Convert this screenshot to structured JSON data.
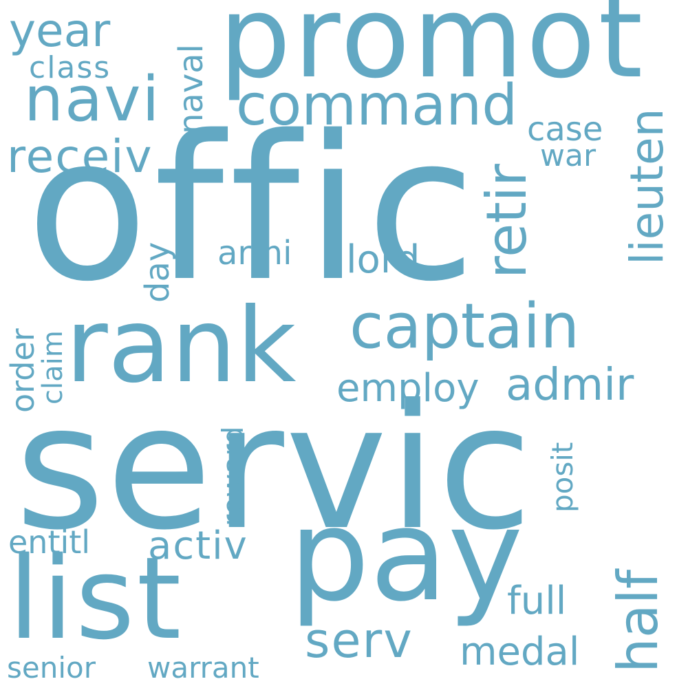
{
  "word_color": "#62a8c3",
  "background_color": "#ffffff",
  "words": {
    "offic": "offic",
    "servic": "servic",
    "promot": "promot",
    "rank": "rank",
    "pay": "pay",
    "list": "list",
    "captain": "captain",
    "navi": "navi",
    "command": "command",
    "receiv": "receiv",
    "year": "year",
    "class": "class",
    "naval": "naval",
    "retir": "retir",
    "lieuten": "lieuten",
    "case": "case",
    "war": "war",
    "armi": "armi",
    "lord": "lord",
    "day": "day",
    "employ": "employ",
    "admir": "admir",
    "order": "order",
    "claim": "claim",
    "reward": "reward",
    "posit": "posit",
    "entitl": "entitl",
    "activ": "activ",
    "half": "half",
    "full": "full",
    "serv": "serv",
    "medal": "medal",
    "senior": "senior",
    "warrant": "warrant"
  }
}
